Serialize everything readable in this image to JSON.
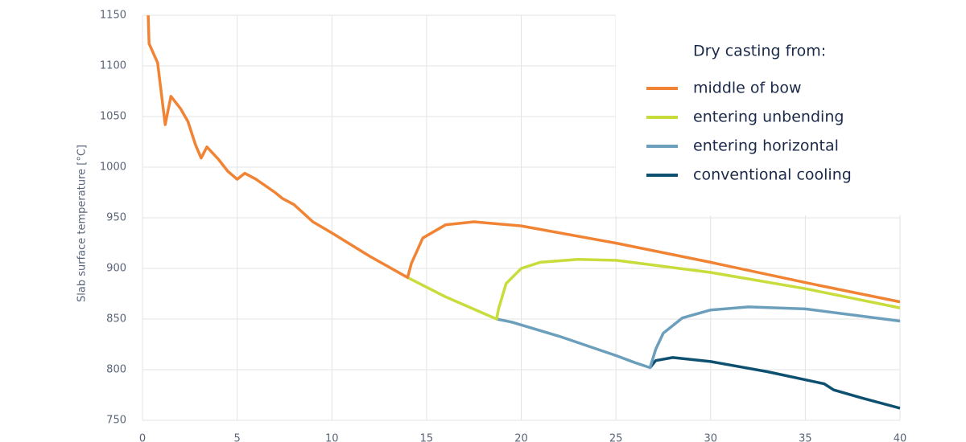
{
  "chart_data": {
    "type": "line",
    "y_label": "Slab surface temperature [°C]",
    "legend_title": "Dry casting from:",
    "legend": "upper right",
    "grid": true,
    "xlim": [
      0,
      40
    ],
    "xticks": [
      0,
      5,
      10,
      15,
      20,
      25,
      30,
      35,
      40
    ],
    "ylim": [
      750,
      1150
    ],
    "yticks": [
      750,
      800,
      850,
      900,
      950,
      1000,
      1050,
      1100,
      1150
    ],
    "series": [
      {
        "name": "middle of bow",
        "color": "#f08434",
        "x": [
          0.3,
          0.35,
          0.8,
          1.2,
          1.5,
          2.0,
          2.4,
          2.8,
          3.1,
          3.4,
          4.0,
          4.5,
          5.0,
          5.4,
          6.0,
          7.0,
          7.4,
          8.0,
          9.0,
          10.0,
          12.0,
          14.0,
          14.2,
          14.8,
          16.0,
          17.5,
          20,
          25,
          30,
          35,
          40
        ],
        "values": [
          1150,
          1122,
          1103,
          1042,
          1070,
          1058,
          1045,
          1022,
          1009,
          1020,
          1008,
          996,
          988,
          994,
          988,
          975,
          969,
          963,
          946,
          935,
          912,
          891,
          905,
          930,
          943,
          946,
          942,
          925,
          906,
          886,
          867
        ]
      },
      {
        "name": "entering unbending",
        "color": "#c8dc3c",
        "x": [
          14,
          16,
          18.7,
          18.8,
          19.2,
          20,
          21,
          23,
          25,
          30,
          35,
          40
        ],
        "values": [
          891,
          872,
          850,
          860,
          885,
          900,
          906,
          909,
          908,
          896,
          880,
          861
        ]
      },
      {
        "name": "entering horizontal",
        "color": "#6b9fbb",
        "x": [
          18.7,
          19.5,
          22,
          25,
          26,
          26.8,
          27.1,
          27.5,
          28.5,
          30,
          32,
          35,
          40
        ],
        "values": [
          850,
          847,
          833,
          814,
          807,
          802,
          820,
          836,
          851,
          859,
          862,
          860,
          848
        ]
      },
      {
        "name": "conventional cooling",
        "color": "#0d5070",
        "x": [
          26.8,
          27.1,
          28,
          30,
          33,
          36,
          36.5,
          38,
          40
        ],
        "values": [
          802,
          809,
          812,
          808,
          798,
          786,
          780,
          772,
          762
        ]
      }
    ]
  }
}
